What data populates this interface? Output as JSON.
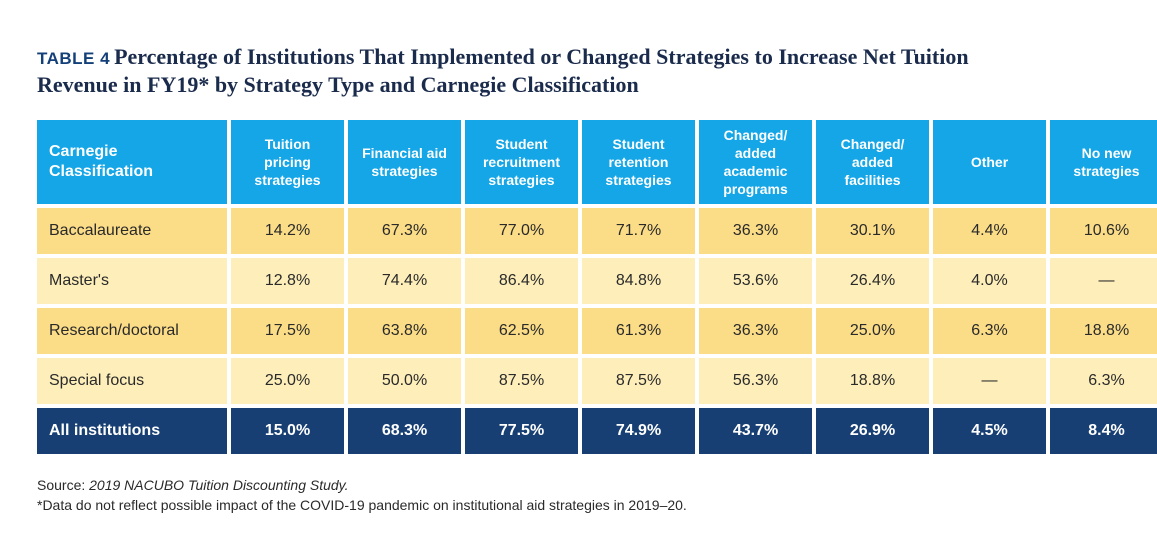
{
  "title": {
    "label": "TABLE 4",
    "line1": "Percentage of Institutions That Implemented or Changed Strategies to Increase Net Tuition",
    "line2": "Revenue in FY19* by Strategy Type and Carnegie Classification"
  },
  "table": {
    "headers": [
      [
        "Carnegie",
        "Classification"
      ],
      [
        "Tuition",
        "pricing",
        "strategies"
      ],
      [
        "Financial aid",
        "strategies"
      ],
      [
        "Student",
        "recruitment",
        "strategies"
      ],
      [
        "Student",
        "retention",
        "strategies"
      ],
      [
        "Changed/",
        "added",
        "academic",
        "programs"
      ],
      [
        "Changed/",
        "added",
        "facilities"
      ],
      [
        "Other"
      ],
      [
        "No new",
        "strategies"
      ]
    ],
    "rows": [
      [
        "Baccalaureate",
        "14.2%",
        "67.3%",
        "77.0%",
        "71.7%",
        "36.3%",
        "30.1%",
        "4.4%",
        "10.6%"
      ],
      [
        "Master's",
        "12.8%",
        "74.4%",
        "86.4%",
        "84.8%",
        "53.6%",
        "26.4%",
        "4.0%",
        "—"
      ],
      [
        "Research/doctoral",
        "17.5%",
        "63.8%",
        "62.5%",
        "61.3%",
        "36.3%",
        "25.0%",
        "6.3%",
        "18.8%"
      ],
      [
        "Special focus",
        "25.0%",
        "50.0%",
        "87.5%",
        "87.5%",
        "56.3%",
        "18.8%",
        "—",
        "6.3%"
      ]
    ],
    "total": [
      "All institutions",
      "15.0%",
      "68.3%",
      "77.5%",
      "74.9%",
      "43.7%",
      "26.9%",
      "4.5%",
      "8.4%"
    ]
  },
  "notes": {
    "source_prefix": "Source: ",
    "source_title": "2019 NACUBO Tuition Discounting Study.",
    "footnote": "*Data do not reflect possible impact of the COVID-19 pandemic on institutional aid strategies in 2019–20."
  },
  "colors": {
    "header": "#14a6e6",
    "row_odd": "#fbdc87",
    "row_even": "#fdeeba",
    "total": "#173f73",
    "title": "#1a2b4c"
  }
}
